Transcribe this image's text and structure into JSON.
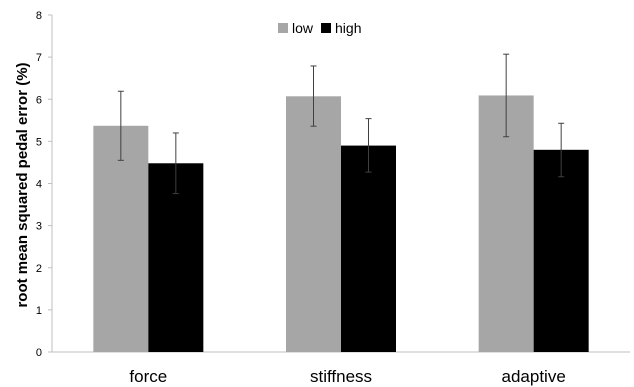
{
  "chart_data": {
    "type": "bar",
    "title": "",
    "xlabel": "",
    "ylabel": "root mean squared pedal error (%)",
    "ylim": [
      0,
      8
    ],
    "yticks": [
      0,
      1,
      2,
      3,
      4,
      5,
      6,
      7,
      8
    ],
    "grid": false,
    "legend": {
      "position": "top-center"
    },
    "categories": [
      "force",
      "stiffness",
      "adaptive"
    ],
    "series": [
      {
        "name": "low",
        "color": "#a6a6a6",
        "values": [
          5.37,
          6.07,
          6.09
        ],
        "error_low": [
          4.55,
          5.36,
          5.11
        ],
        "error_high": [
          6.19,
          6.79,
          7.07
        ]
      },
      {
        "name": "high",
        "color": "#000000",
        "values": [
          4.48,
          4.9,
          4.8
        ],
        "error_low": [
          3.76,
          4.27,
          4.16
        ],
        "error_high": [
          5.2,
          5.54,
          5.43
        ]
      }
    ]
  }
}
